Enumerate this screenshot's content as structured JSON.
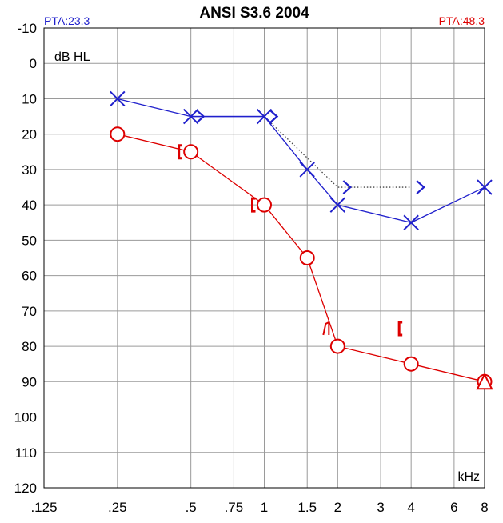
{
  "chart_data": {
    "type": "scatter",
    "title": "ANSI S3.6 2004",
    "pta_left": "PTA:23.3",
    "pta_right": "PTA:48.3",
    "ylabel": "dB HL",
    "xlabel": "kHz",
    "x_ticks": [
      {
        "value": 0.125,
        "label": ".125"
      },
      {
        "value": 0.25,
        "label": ".25"
      },
      {
        "value": 0.5,
        "label": ".5"
      },
      {
        "value": 0.75,
        "label": ".75"
      },
      {
        "value": 1,
        "label": "1"
      },
      {
        "value": 1.5,
        "label": "1.5"
      },
      {
        "value": 2,
        "label": "2"
      },
      {
        "value": 3,
        "label": "3"
      },
      {
        "value": 4,
        "label": "4"
      },
      {
        "value": 6,
        "label": "6"
      },
      {
        "value": 8,
        "label": "8"
      }
    ],
    "y_ticks": [
      -10,
      0,
      10,
      20,
      30,
      40,
      50,
      60,
      70,
      80,
      90,
      100,
      110,
      120
    ],
    "xlim": [
      0.125,
      8
    ],
    "ylim": [
      -10,
      120
    ],
    "y_inverted": true,
    "x_scale": "log",
    "grid": true,
    "colors": {
      "left": "#2020cc",
      "right": "#dd0000",
      "dotted": "#444444"
    },
    "series": [
      {
        "symbol": "x",
        "color": "#2020cc",
        "connected": true,
        "line": "solid",
        "points": [
          {
            "x": 0.25,
            "y": 10
          },
          {
            "x": 0.5,
            "y": 15
          },
          {
            "x": 1,
            "y": 15
          },
          {
            "x": 1.5,
            "y": 30
          },
          {
            "x": 2,
            "y": 40
          },
          {
            "x": 4,
            "y": 45
          },
          {
            "x": 8,
            "y": 35
          }
        ]
      },
      {
        "symbol": "gt",
        "color": "#2020cc",
        "connected": true,
        "line": "solid",
        "points": [
          {
            "x": 0.5,
            "y": 15
          },
          {
            "x": 1,
            "y": 15
          }
        ]
      },
      {
        "symbol": "gt",
        "color": "#2020cc",
        "connected": true,
        "line": "dotted",
        "points": [
          {
            "x": 1,
            "y": 15
          },
          {
            "x": 2,
            "y": 35
          },
          {
            "x": 4,
            "y": 35
          }
        ]
      },
      {
        "symbol": "o",
        "color": "#dd0000",
        "connected": true,
        "line": "solid",
        "points": [
          {
            "x": 0.25,
            "y": 20
          },
          {
            "x": 0.5,
            "y": 25
          },
          {
            "x": 1,
            "y": 40
          },
          {
            "x": 1.5,
            "y": 55
          },
          {
            "x": 2,
            "y": 80
          },
          {
            "x": 4,
            "y": 85
          },
          {
            "x": 8,
            "y": 90
          }
        ]
      },
      {
        "symbol": "bracket",
        "color": "#dd0000",
        "connected": false,
        "line": "none",
        "points": [
          {
            "x": 0.5,
            "y": 25
          },
          {
            "x": 1,
            "y": 40
          },
          {
            "x": 4,
            "y": 75
          }
        ]
      },
      {
        "symbol": "hook",
        "color": "#dd0000",
        "connected": false,
        "line": "none",
        "points": [
          {
            "x": 2,
            "y": 75
          }
        ]
      },
      {
        "symbol": "triangle",
        "color": "#dd0000",
        "connected": false,
        "line": "none",
        "points": [
          {
            "x": 8,
            "y": 90
          }
        ]
      }
    ]
  }
}
